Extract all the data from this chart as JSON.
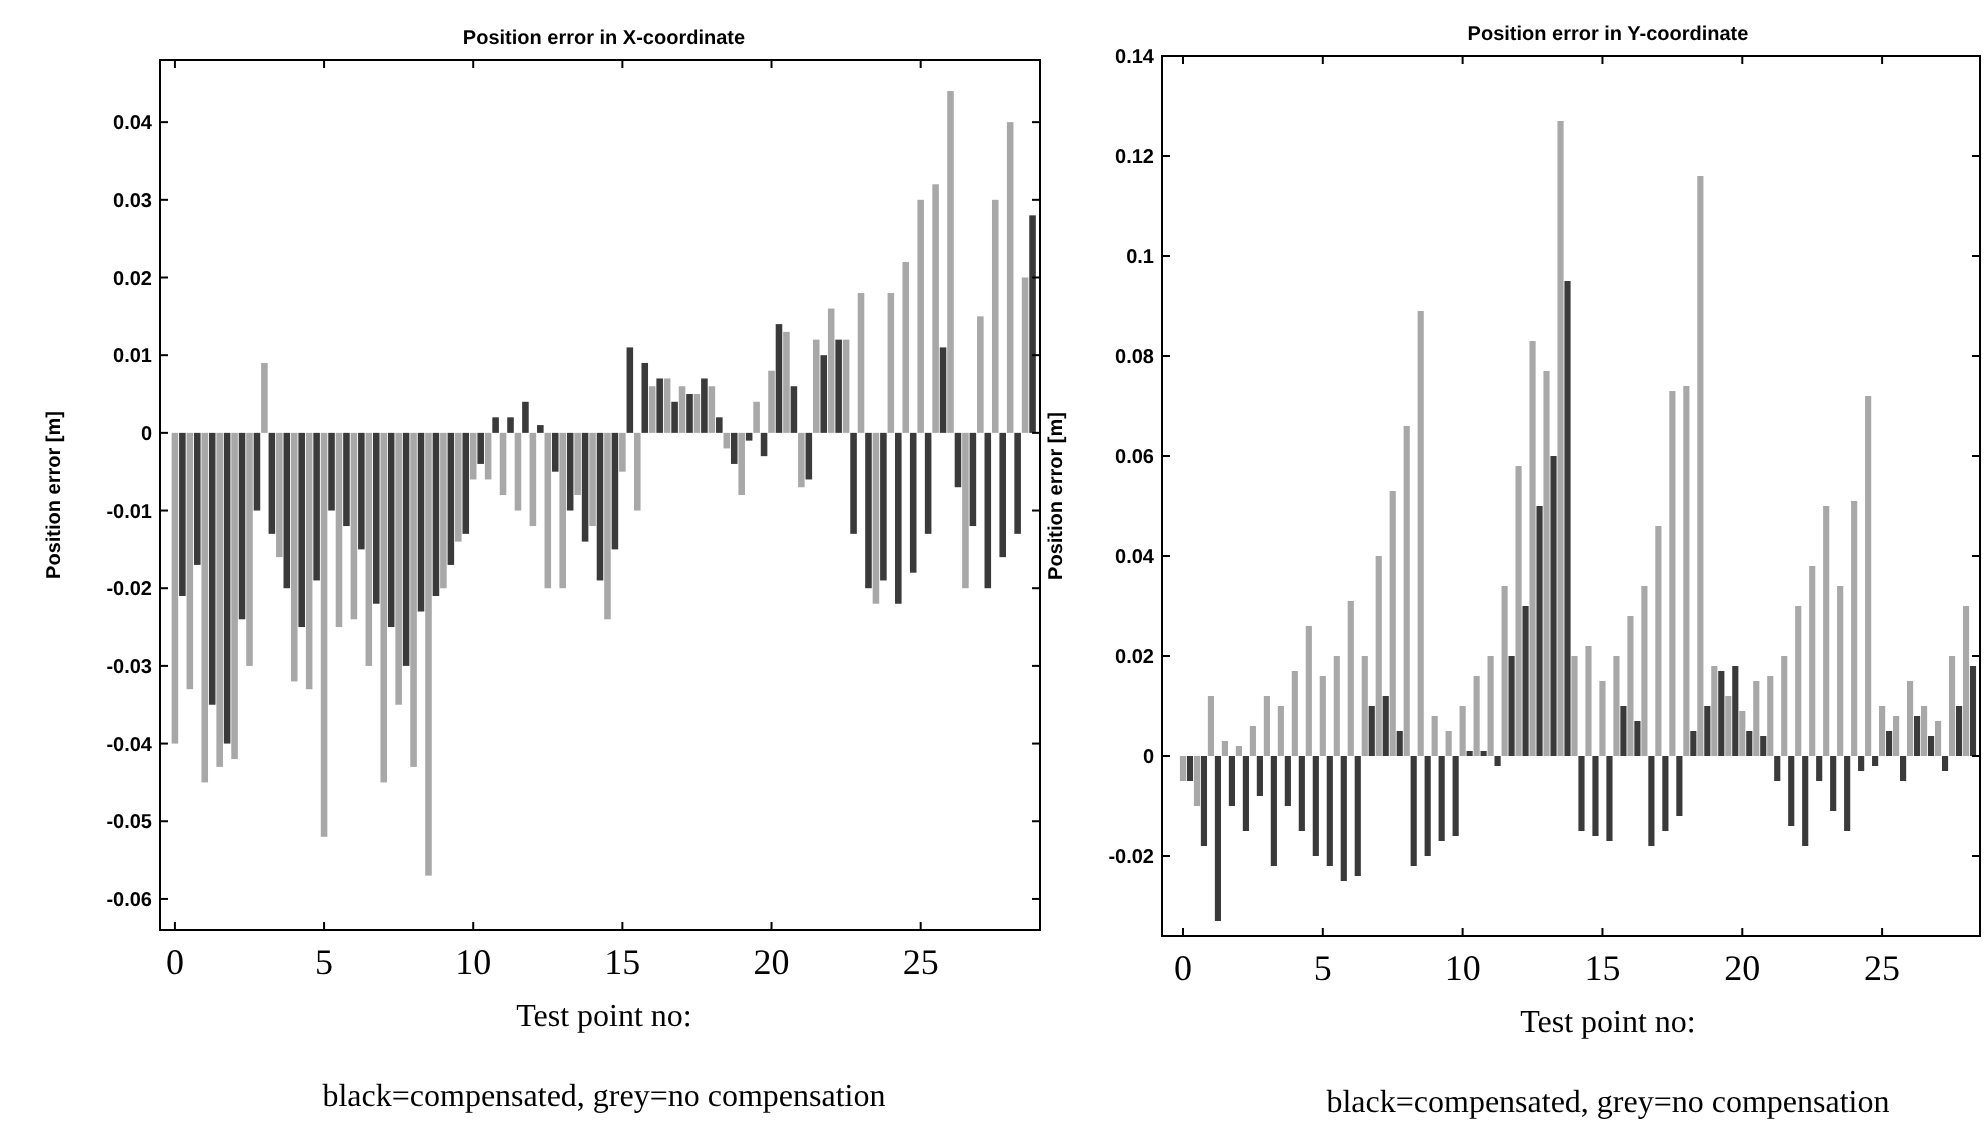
{
  "chart_data": [
    {
      "type": "bar",
      "title": "Position error in X-coordinate",
      "xlabel": "Test point no:",
      "ylabel": "Position error [m]",
      "annotations": [
        "black=compensated, grey=no compensation"
      ],
      "xlim": [
        -0.5,
        29
      ],
      "xticks": [
        0,
        5,
        10,
        15,
        20,
        25
      ],
      "ylim": [
        -0.064,
        0.048
      ],
      "yticks": [
        -0.06,
        -0.05,
        -0.04,
        -0.03,
        -0.02,
        -0.01,
        0,
        0.01,
        0.02,
        0.03,
        0.04
      ],
      "grid": false,
      "series": [
        {
          "color": "#a8a8a8",
          "x": [
            0,
            0.5,
            1,
            1.5,
            2,
            2.5,
            3,
            3.5,
            4,
            4.5,
            5,
            5.5,
            6,
            6.5,
            7,
            7.5,
            8,
            8.5,
            9,
            9.5,
            10,
            10.5,
            11,
            11.5,
            12,
            12.5,
            13,
            13.5,
            14,
            14.5,
            15,
            15.5,
            16,
            16.5,
            17,
            17.5,
            18,
            18.5,
            19,
            19.5,
            20,
            20.5,
            21,
            21.5,
            22,
            22.5,
            23,
            23.5,
            24,
            24.5,
            25,
            25.5,
            26,
            26.5,
            27,
            27.5,
            28,
            28.5
          ],
          "values": [
            -0.04,
            -0.033,
            -0.045,
            -0.043,
            -0.042,
            -0.03,
            0.009,
            -0.016,
            -0.032,
            -0.033,
            -0.052,
            -0.025,
            -0.024,
            -0.03,
            -0.045,
            -0.035,
            -0.043,
            -0.057,
            -0.02,
            -0.014,
            -0.006,
            -0.006,
            -0.008,
            -0.01,
            -0.012,
            -0.02,
            -0.02,
            -0.008,
            -0.012,
            -0.024,
            -0.005,
            -0.01,
            0.006,
            0.007,
            0.006,
            0.005,
            0.006,
            -0.002,
            -0.008,
            0.004,
            0.008,
            0.013,
            -0.007,
            0.012,
            0.016,
            0.012,
            0.018,
            -0.022,
            0.018,
            0.022,
            0.03,
            0.032,
            0.044,
            -0.02,
            0.015,
            0.03,
            0.04,
            0.02
          ]
        },
        {
          "color": "#3a3a3a",
          "x": [
            0.25,
            0.75,
            1.25,
            1.75,
            2.25,
            2.75,
            3.25,
            3.75,
            4.25,
            4.75,
            5.25,
            5.75,
            6.25,
            6.75,
            7.25,
            7.75,
            8.25,
            8.75,
            9.25,
            9.75,
            10.25,
            10.75,
            11.25,
            11.75,
            12.25,
            12.75,
            13.25,
            13.75,
            14.25,
            14.75,
            15.25,
            15.75,
            16.25,
            16.75,
            17.25,
            17.75,
            18.25,
            18.75,
            19.25,
            19.75,
            20.25,
            20.75,
            21.25,
            21.75,
            22.25,
            22.75,
            23.25,
            23.75,
            24.25,
            24.75,
            25.25,
            25.75,
            26.25,
            26.75,
            27.25,
            27.75,
            28.25,
            28.75
          ],
          "values": [
            -0.021,
            -0.017,
            -0.035,
            -0.04,
            -0.024,
            -0.01,
            -0.013,
            -0.02,
            -0.025,
            -0.019,
            -0.01,
            -0.012,
            -0.015,
            -0.022,
            -0.025,
            -0.03,
            -0.023,
            -0.021,
            -0.017,
            -0.013,
            -0.004,
            0.002,
            0.002,
            0.004,
            0.001,
            -0.005,
            -0.01,
            -0.014,
            -0.019,
            -0.015,
            0.011,
            0.009,
            0.007,
            0.004,
            0.005,
            0.007,
            0.002,
            -0.004,
            -0.001,
            -0.003,
            0.014,
            0.006,
            -0.006,
            0.01,
            0.012,
            -0.013,
            -0.02,
            -0.019,
            -0.022,
            -0.018,
            -0.013,
            0.011,
            -0.007,
            -0.012,
            -0.02,
            -0.016,
            -0.013,
            0.028
          ]
        }
      ]
    },
    {
      "type": "bar",
      "title": "Position error in Y-coordinate",
      "xlabel": "Test point no:",
      "ylabel": "Position error [m]",
      "annotations": [
        "black=compensated, grey=no compensation"
      ],
      "xlim": [
        -0.75,
        28.5
      ],
      "xticks": [
        0,
        5,
        10,
        15,
        20,
        25
      ],
      "ylim": [
        -0.036,
        0.14
      ],
      "yticks": [
        -0.02,
        0,
        0.02,
        0.04,
        0.06,
        0.08,
        0.1,
        0.12,
        0.14
      ],
      "grid": false,
      "series": [
        {
          "color": "#a8a8a8",
          "x": [
            0,
            0.5,
            1,
            1.5,
            2,
            2.5,
            3,
            3.5,
            4,
            4.5,
            5,
            5.5,
            6,
            6.5,
            7,
            7.5,
            8,
            8.5,
            9,
            9.5,
            10,
            10.5,
            11,
            11.5,
            12,
            12.5,
            13,
            13.5,
            14,
            14.5,
            15,
            15.5,
            16,
            16.5,
            17,
            17.5,
            18,
            18.5,
            19,
            19.5,
            20,
            20.5,
            21,
            21.5,
            22,
            22.5,
            23,
            23.5,
            24,
            24.5,
            25,
            25.5,
            26,
            26.5,
            27,
            27.5,
            28
          ],
          "values": [
            -0.005,
            -0.01,
            0.012,
            0.003,
            0.002,
            0.006,
            0.012,
            0.01,
            0.017,
            0.026,
            0.016,
            0.02,
            0.031,
            0.02,
            0.04,
            0.053,
            0.066,
            0.089,
            0.008,
            0.005,
            0.01,
            0.016,
            0.02,
            0.034,
            0.058,
            0.083,
            0.077,
            0.127,
            0.02,
            0.022,
            0.015,
            0.02,
            0.028,
            0.034,
            0.046,
            0.073,
            0.074,
            0.116,
            0.018,
            0.012,
            0.009,
            0.015,
            0.016,
            0.02,
            0.03,
            0.038,
            0.05,
            0.034,
            0.051,
            0.072,
            0.01,
            0.008,
            0.015,
            0.01,
            0.007,
            0.02,
            0.03
          ]
        },
        {
          "color": "#3a3a3a",
          "x": [
            0.25,
            0.75,
            1.25,
            1.75,
            2.25,
            2.75,
            3.25,
            3.75,
            4.25,
            4.75,
            5.25,
            5.75,
            6.25,
            6.75,
            7.25,
            7.75,
            8.25,
            8.75,
            9.25,
            9.75,
            10.25,
            10.75,
            11.25,
            11.75,
            12.25,
            12.75,
            13.25,
            13.75,
            14.25,
            14.75,
            15.25,
            15.75,
            16.25,
            16.75,
            17.25,
            17.75,
            18.25,
            18.75,
            19.25,
            19.75,
            20.25,
            20.75,
            21.25,
            21.75,
            22.25,
            22.75,
            23.25,
            23.75,
            24.25,
            24.75,
            25.25,
            25.75,
            26.25,
            26.75,
            27.25,
            27.75,
            28.25
          ],
          "values": [
            -0.005,
            -0.018,
            -0.033,
            -0.01,
            -0.015,
            -0.008,
            -0.022,
            -0.01,
            -0.015,
            -0.02,
            -0.022,
            -0.025,
            -0.024,
            0.01,
            0.012,
            0.005,
            -0.022,
            -0.02,
            -0.017,
            -0.016,
            0.001,
            0.001,
            -0.002,
            0.02,
            0.03,
            0.05,
            0.06,
            0.095,
            -0.015,
            -0.016,
            -0.017,
            0.01,
            0.007,
            -0.018,
            -0.015,
            -0.012,
            0.005,
            0.01,
            0.017,
            0.018,
            0.005,
            0.004,
            -0.005,
            -0.014,
            -0.018,
            -0.005,
            -0.011,
            -0.015,
            -0.003,
            -0.002,
            0.005,
            -0.005,
            0.008,
            0.004,
            -0.003,
            0.01,
            0.018
          ]
        }
      ]
    }
  ]
}
